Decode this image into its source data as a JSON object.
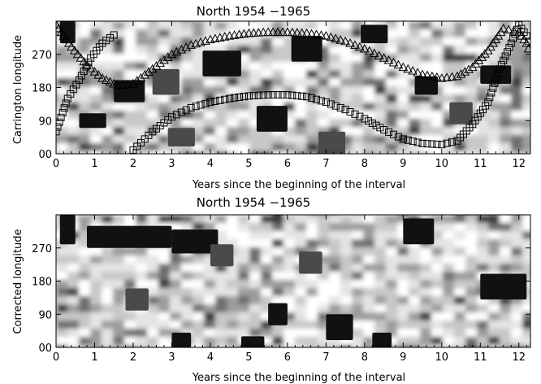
{
  "chart_data": [
    {
      "type": "heatmap",
      "title": "North 1954 −1965",
      "xlabel": "Years since the beginning of the interval",
      "ylabel": "Carrington longitude",
      "xlim": [
        0,
        12.3
      ],
      "ylim": [
        0,
        360
      ],
      "xticks": [
        "0",
        "1",
        "2",
        "3",
        "4",
        "5",
        "6",
        "7",
        "8",
        "9",
        "10",
        "11",
        "12"
      ],
      "yticks": [
        {
          "value": 0,
          "label": "00"
        },
        {
          "value": 90,
          "label": "90"
        },
        {
          "value": 180,
          "label": "180"
        },
        {
          "value": 270,
          "label": "270"
        }
      ],
      "colormap": "grayscale, white = low, black = high",
      "activity_patches": [
        {
          "x0": 0.1,
          "x1": 0.5,
          "y0": 300,
          "y1": 360,
          "level": 3
        },
        {
          "x0": 0.6,
          "x1": 1.3,
          "y0": 70,
          "y1": 110,
          "level": 3
        },
        {
          "x0": 1.5,
          "x1": 2.3,
          "y0": 140,
          "y1": 200,
          "level": 3
        },
        {
          "x0": 2.5,
          "x1": 3.2,
          "y0": 160,
          "y1": 230,
          "level": 2
        },
        {
          "x0": 3.8,
          "x1": 4.8,
          "y0": 210,
          "y1": 280,
          "level": 3
        },
        {
          "x0": 5.2,
          "x1": 6.0,
          "y0": 60,
          "y1": 130,
          "level": 3
        },
        {
          "x0": 6.1,
          "x1": 6.9,
          "y0": 250,
          "y1": 320,
          "level": 3
        },
        {
          "x0": 6.8,
          "x1": 7.5,
          "y0": 0,
          "y1": 60,
          "level": 2
        },
        {
          "x0": 7.9,
          "x1": 8.6,
          "y0": 300,
          "y1": 350,
          "level": 3
        },
        {
          "x0": 9.3,
          "x1": 9.9,
          "y0": 160,
          "y1": 210,
          "level": 3
        },
        {
          "x0": 11.0,
          "x1": 11.8,
          "y0": 190,
          "y1": 240,
          "level": 3
        },
        {
          "x0": 2.9,
          "x1": 3.6,
          "y0": 20,
          "y1": 70,
          "level": 2
        },
        {
          "x0": 10.2,
          "x1": 10.8,
          "y0": 80,
          "y1": 140,
          "level": 2
        }
      ],
      "overlay_series": [
        {
          "marker": "triangle",
          "x": [
            0.0,
            0.4,
            0.8,
            1.2,
            1.6,
            2.0,
            2.5,
            3.0,
            3.5,
            4.0,
            4.5,
            5.0,
            5.5,
            6.0,
            6.5,
            7.0,
            7.5,
            8.0,
            8.5,
            9.0,
            9.5,
            10.0,
            10.4,
            10.8,
            11.2,
            11.6,
            12.0,
            12.2,
            12.3
          ],
          "y": [
            350,
            290,
            240,
            205,
            185,
            190,
            230,
            270,
            295,
            310,
            320,
            327,
            330,
            330,
            327,
            320,
            305,
            285,
            260,
            235,
            215,
            205,
            210,
            235,
            280,
            340,
            330,
            300,
            270
          ]
        },
        {
          "marker": "square",
          "x": [
            0.0,
            0.3,
            0.6,
            0.9,
            1.2,
            1.6,
            2.0,
            2.5,
            3.0,
            3.5,
            4.0,
            4.5,
            5.0,
            5.5,
            6.0,
            6.5,
            7.0,
            7.5,
            8.0,
            8.5,
            9.0,
            9.5,
            10.0,
            10.4,
            10.8,
            11.2,
            11.5,
            11.8,
            12.0,
            12.2,
            12.3
          ],
          "y": [
            60,
            150,
            200,
            260,
            300,
            330,
            10,
            60,
            100,
            125,
            140,
            150,
            157,
            160,
            160,
            155,
            140,
            120,
            95,
            65,
            40,
            28,
            25,
            35,
            80,
            140,
            230,
            300,
            350,
            320,
            290
          ]
        }
      ]
    },
    {
      "type": "heatmap",
      "title": "North 1954 −1965",
      "xlabel": "Years since the beginning of the interval",
      "ylabel": "Corrected longitude",
      "xlim": [
        0,
        12.3
      ],
      "ylim": [
        0,
        360
      ],
      "xticks": [
        "0",
        "1",
        "2",
        "3",
        "4",
        "5",
        "6",
        "7",
        "8",
        "9",
        "10",
        "11",
        "12"
      ],
      "yticks": [
        {
          "value": 0,
          "label": "00"
        },
        {
          "value": 90,
          "label": "90"
        },
        {
          "value": 180,
          "label": "180"
        },
        {
          "value": 270,
          "label": "270"
        }
      ],
      "colormap": "grayscale, white = low, black = high",
      "activity_patches": [
        {
          "x0": 0.1,
          "x1": 0.5,
          "y0": 280,
          "y1": 360,
          "level": 3
        },
        {
          "x0": 0.8,
          "x1": 3.0,
          "y0": 270,
          "y1": 330,
          "level": 3
        },
        {
          "x0": 3.0,
          "x1": 4.2,
          "y0": 255,
          "y1": 320,
          "level": 3
        },
        {
          "x0": 4.0,
          "x1": 4.6,
          "y0": 220,
          "y1": 280,
          "level": 2
        },
        {
          "x0": 5.5,
          "x1": 6.0,
          "y0": 60,
          "y1": 120,
          "level": 3
        },
        {
          "x0": 6.3,
          "x1": 6.9,
          "y0": 200,
          "y1": 260,
          "level": 2
        },
        {
          "x0": 7.0,
          "x1": 7.7,
          "y0": 20,
          "y1": 90,
          "level": 3
        },
        {
          "x0": 8.2,
          "x1": 8.7,
          "y0": 0,
          "y1": 40,
          "level": 3
        },
        {
          "x0": 9.0,
          "x1": 9.8,
          "y0": 280,
          "y1": 350,
          "level": 3
        },
        {
          "x0": 11.0,
          "x1": 12.2,
          "y0": 130,
          "y1": 200,
          "level": 3
        },
        {
          "x0": 3.0,
          "x1": 3.5,
          "y0": 0,
          "y1": 40,
          "level": 3
        },
        {
          "x0": 1.8,
          "x1": 2.4,
          "y0": 100,
          "y1": 160,
          "level": 2
        },
        {
          "x0": 4.8,
          "x1": 5.4,
          "y0": 0,
          "y1": 30,
          "level": 3
        }
      ],
      "overlay_series": []
    }
  ]
}
